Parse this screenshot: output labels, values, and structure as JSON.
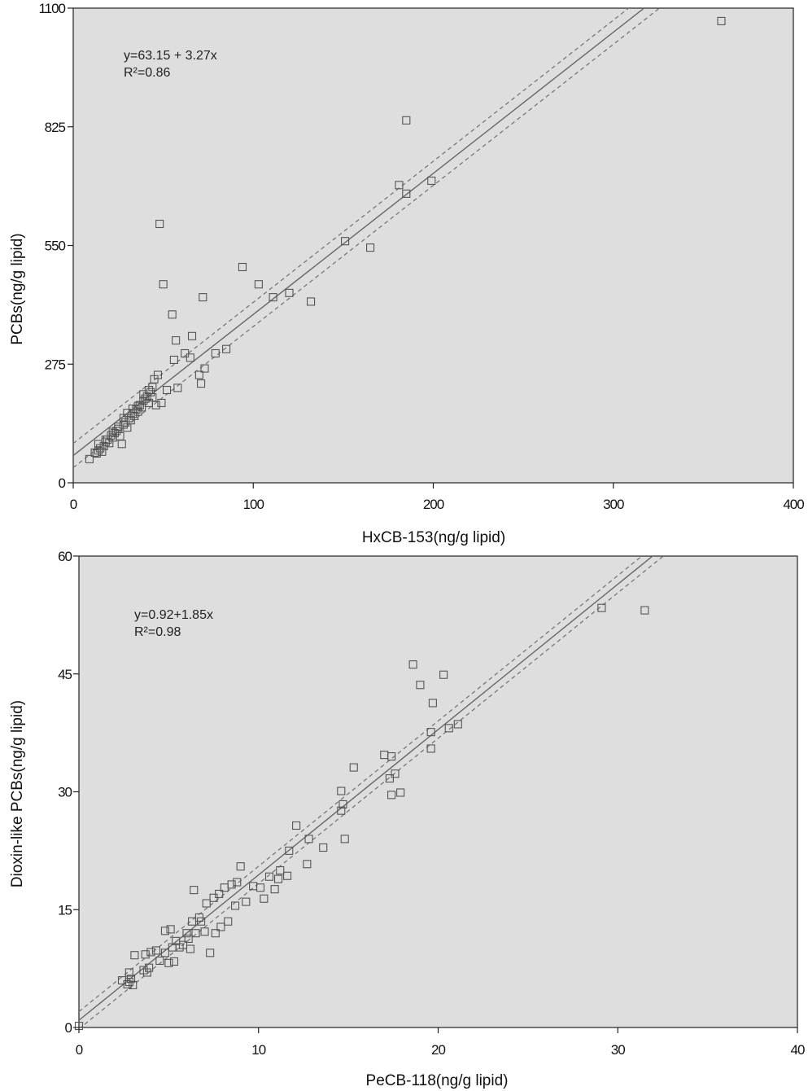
{
  "chart_data": [
    {
      "type": "scatter",
      "xlabel": "HxCB-153(ng/g lipid)",
      "ylabel": "PCBs(ng/g lipid)",
      "xlim": [
        0,
        400
      ],
      "ylim": [
        0,
        1100
      ],
      "xticks": [
        0,
        100,
        200,
        300,
        400
      ],
      "yticks": [
        0,
        275,
        550,
        825,
        1100
      ],
      "xtick_labels": [
        "0",
        "100",
        "200",
        "300",
        "400"
      ],
      "ytick_labels": [
        "0",
        "275",
        "550",
        "825",
        "1100"
      ],
      "background": "#dedede",
      "annotation": [
        "y=63.15 + 3.27x",
        "R²=0.86"
      ],
      "fit": {
        "intercept": 63.15,
        "slope": 3.27,
        "ci_halfwidth": 28
      },
      "series": [
        {
          "points": [
            [
              9,
              55
            ],
            [
              12,
              70
            ],
            [
              13,
              68
            ],
            [
              14,
              75
            ],
            [
              15,
              80
            ],
            [
              16,
              72
            ],
            [
              17,
              85
            ],
            [
              18,
              95
            ],
            [
              19,
              100
            ],
            [
              20,
              92
            ],
            [
              21,
              110
            ],
            [
              22,
              105
            ],
            [
              23,
              115
            ],
            [
              24,
              120
            ],
            [
              25,
              125
            ],
            [
              26,
              108
            ],
            [
              27,
              90
            ],
            [
              28,
              135
            ],
            [
              29,
              140
            ],
            [
              30,
              128
            ],
            [
              31,
              150
            ],
            [
              32,
              145
            ],
            [
              33,
              160
            ],
            [
              34,
              155
            ],
            [
              35,
              170
            ],
            [
              36,
              165
            ],
            [
              37,
              180
            ],
            [
              38,
              175
            ],
            [
              39,
              190
            ],
            [
              40,
              195
            ],
            [
              41,
              200
            ],
            [
              42,
              185
            ],
            [
              43,
              210
            ],
            [
              44,
              198
            ],
            [
              45,
              240
            ],
            [
              46,
              180
            ],
            [
              47,
              250
            ],
            [
              48,
              600
            ],
            [
              49,
              185
            ],
            [
              50,
              460
            ],
            [
              52,
              215
            ],
            [
              55,
              390
            ],
            [
              56,
              285
            ],
            [
              57,
              330
            ],
            [
              58,
              220
            ],
            [
              62,
              300
            ],
            [
              65,
              290
            ],
            [
              66,
              340
            ],
            [
              70,
              250
            ],
            [
              71,
              230
            ],
            [
              72,
              430
            ],
            [
              73,
              265
            ],
            [
              79,
              300
            ],
            [
              85,
              310
            ],
            [
              94,
              500
            ],
            [
              103,
              460
            ],
            [
              111,
              430
            ],
            [
              120,
              440
            ],
            [
              132,
              420
            ],
            [
              151,
              560
            ],
            [
              165,
              545
            ],
            [
              181,
              690
            ],
            [
              185,
              670
            ],
            [
              185,
              840
            ],
            [
              199,
              700
            ],
            [
              14,
              90
            ],
            [
              18,
              100
            ],
            [
              22,
              118
            ],
            [
              25,
              130
            ],
            [
              28,
              150
            ],
            [
              30,
              162
            ],
            [
              33,
              172
            ],
            [
              36,
              178
            ],
            [
              39,
              205
            ],
            [
              42,
              215
            ],
            [
              44,
              222
            ],
            [
              360,
              1070
            ]
          ]
        }
      ]
    },
    {
      "type": "scatter",
      "xlabel": "PeCB-118(ng/g lipid)",
      "ylabel": "Dioxin-like PCBs(ng/g lipid)",
      "xlim": [
        0,
        40
      ],
      "ylim": [
        0,
        60
      ],
      "xticks": [
        0,
        10,
        20,
        30,
        40
      ],
      "yticks": [
        0,
        15,
        30,
        45,
        60
      ],
      "xtick_labels": [
        "0",
        "10",
        "20",
        "30",
        "40"
      ],
      "ytick_labels": [
        "0",
        "15",
        "30",
        "45",
        "60"
      ],
      "background": "#dedede",
      "annotation": [
        "y=0.92+1.85x",
        "R²=0.98"
      ],
      "fit": {
        "intercept": 0.92,
        "slope": 1.85,
        "ci_halfwidth": 1.1
      },
      "series": [
        {
          "points": [
            [
              0.0,
              0.2
            ],
            [
              2.4,
              6.0
            ],
            [
              2.7,
              5.5
            ],
            [
              2.8,
              5.8
            ],
            [
              2.9,
              6.2
            ],
            [
              2.8,
              7.0
            ],
            [
              3.0,
              5.4
            ],
            [
              3.1,
              9.2
            ],
            [
              3.6,
              7.3
            ],
            [
              3.7,
              9.3
            ],
            [
              3.8,
              7.0
            ],
            [
              3.9,
              7.6
            ],
            [
              4.0,
              9.6
            ],
            [
              4.3,
              9.8
            ],
            [
              4.5,
              8.5
            ],
            [
              4.8,
              9.5
            ],
            [
              4.8,
              12.3
            ],
            [
              5.0,
              8.2
            ],
            [
              5.1,
              12.5
            ],
            [
              5.2,
              10.2
            ],
            [
              5.3,
              8.4
            ],
            [
              5.4,
              11.0
            ],
            [
              5.6,
              10.2
            ],
            [
              5.8,
              10.5
            ],
            [
              6.0,
              12.0
            ],
            [
              6.1,
              11.3
            ],
            [
              6.2,
              10.0
            ],
            [
              6.3,
              13.5
            ],
            [
              6.4,
              17.5
            ],
            [
              6.5,
              12.0
            ],
            [
              6.7,
              14.0
            ],
            [
              6.8,
              13.5
            ],
            [
              7.0,
              12.2
            ],
            [
              7.1,
              15.8
            ],
            [
              7.3,
              9.5
            ],
            [
              7.5,
              16.5
            ],
            [
              7.6,
              12.0
            ],
            [
              7.8,
              17.0
            ],
            [
              7.9,
              12.8
            ],
            [
              8.1,
              17.8
            ],
            [
              8.3,
              13.5
            ],
            [
              8.5,
              18.2
            ],
            [
              8.7,
              15.5
            ],
            [
              8.8,
              18.5
            ],
            [
              9.0,
              20.5
            ],
            [
              9.3,
              16.0
            ],
            [
              9.7,
              18.0
            ],
            [
              10.1,
              17.8
            ],
            [
              10.3,
              16.4
            ],
            [
              10.6,
              19.2
            ],
            [
              10.9,
              17.6
            ],
            [
              11.1,
              18.9
            ],
            [
              11.2,
              20.0
            ],
            [
              11.6,
              19.3
            ],
            [
              11.7,
              22.5
            ],
            [
              12.1,
              25.7
            ],
            [
              12.7,
              20.8
            ],
            [
              12.8,
              24.0
            ],
            [
              13.6,
              22.9
            ],
            [
              14.6,
              27.6
            ],
            [
              14.6,
              30.1
            ],
            [
              14.7,
              28.4
            ],
            [
              14.8,
              24.0
            ],
            [
              15.3,
              33.1
            ],
            [
              17.0,
              34.7
            ],
            [
              17.3,
              31.7
            ],
            [
              17.4,
              29.6
            ],
            [
              17.4,
              34.5
            ],
            [
              17.6,
              32.3
            ],
            [
              17.9,
              29.9
            ],
            [
              18.6,
              46.2
            ],
            [
              19.0,
              43.6
            ],
            [
              19.6,
              35.5
            ],
            [
              19.6,
              37.6
            ],
            [
              19.7,
              41.3
            ],
            [
              20.3,
              44.9
            ],
            [
              20.6,
              38.1
            ],
            [
              21.1,
              38.6
            ],
            [
              29.1,
              53.4
            ],
            [
              31.5,
              53.1
            ]
          ]
        }
      ]
    }
  ]
}
